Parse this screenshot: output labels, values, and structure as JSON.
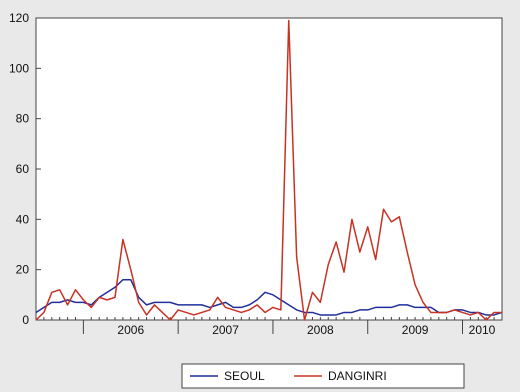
{
  "chart_data": {
    "type": "line",
    "title": "",
    "xlabel": "",
    "ylabel": "",
    "ylim": [
      0,
      120
    ],
    "y_ticks": [
      0,
      20,
      40,
      60,
      80,
      100,
      120
    ],
    "x_tick_labels": [
      "2006",
      "2007",
      "2008",
      "2009",
      "2010"
    ],
    "x_range": [
      "2005-07",
      "2010-06"
    ],
    "grid": false,
    "legend_position": "bottom",
    "x": [
      "2005-07",
      "2005-08",
      "2005-09",
      "2005-10",
      "2005-11",
      "2005-12",
      "2006-01",
      "2006-02",
      "2006-03",
      "2006-04",
      "2006-05",
      "2006-06",
      "2006-07",
      "2006-08",
      "2006-09",
      "2006-10",
      "2006-11",
      "2006-12",
      "2007-01",
      "2007-02",
      "2007-03",
      "2007-04",
      "2007-05",
      "2007-06",
      "2007-07",
      "2007-08",
      "2007-09",
      "2007-10",
      "2007-11",
      "2007-12",
      "2008-01",
      "2008-02",
      "2008-03",
      "2008-04",
      "2008-05",
      "2008-06",
      "2008-07",
      "2008-08",
      "2008-09",
      "2008-10",
      "2008-11",
      "2008-12",
      "2009-01",
      "2009-02",
      "2009-03",
      "2009-04",
      "2009-05",
      "2009-06",
      "2009-07",
      "2009-08",
      "2009-09",
      "2009-10",
      "2009-11",
      "2009-12",
      "2010-01",
      "2010-02",
      "2010-03",
      "2010-04",
      "2010-05",
      "2010-06"
    ],
    "series": [
      {
        "name": "SEOUL",
        "color": "#1f2f9c",
        "values": [
          3,
          5,
          7,
          7,
          8,
          7,
          7,
          6,
          9,
          11,
          13,
          16,
          16,
          9,
          6,
          7,
          7,
          7,
          6,
          6,
          6,
          6,
          5,
          6,
          7,
          5,
          5,
          6,
          8,
          11,
          10,
          8,
          6,
          4,
          3,
          3,
          2,
          2,
          2,
          3,
          3,
          4,
          4,
          5,
          5,
          5,
          6,
          6,
          5,
          5,
          5,
          3,
          3,
          4,
          4,
          3,
          3,
          2,
          2,
          3
        ]
      },
      {
        "name": "DANGINRI",
        "color": "#c83224",
        "values": [
          0,
          3,
          11,
          12,
          6,
          12,
          8,
          5,
          9,
          8,
          9,
          32,
          20,
          7,
          2,
          6,
          3,
          0,
          4,
          3,
          2,
          3,
          4,
          9,
          5,
          4,
          3,
          4,
          6,
          3,
          5,
          4,
          119,
          25,
          0,
          11,
          7,
          22,
          31,
          19,
          40,
          27,
          37,
          24,
          44,
          39,
          41,
          27,
          14,
          7,
          3,
          3,
          3,
          4,
          3,
          2,
          3,
          0,
          3,
          3
        ]
      }
    ]
  }
}
